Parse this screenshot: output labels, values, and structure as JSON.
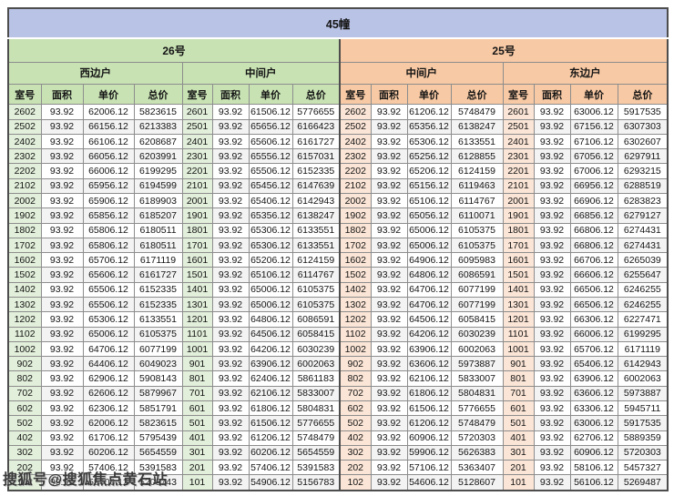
{
  "title": "45幢",
  "watermark_text": "搜狐号@搜狐焦点黄石站",
  "colors": {
    "title_bg": "#b9c3e6",
    "building_26_header": "#c8e2b4",
    "building_26_room_tint": "#e2efda",
    "building_25_header": "#f7c9a4",
    "building_25_room_tint": "#fbe5d6"
  },
  "buildings": [
    {
      "name": "26号",
      "units": [
        "西边户",
        "中间户"
      ]
    },
    {
      "name": "25号",
      "units": [
        "中间户",
        "东边户"
      ]
    }
  ],
  "column_headers": [
    "室号",
    "面积",
    "单价",
    "总价"
  ],
  "rows": [
    [
      "2602",
      "93.92",
      "62006.12",
      "5823615",
      "2601",
      "93.92",
      "61506.12",
      "5776655",
      "2602",
      "93.92",
      "61206.12",
      "5748479",
      "2601",
      "93.92",
      "63006.12",
      "5917535"
    ],
    [
      "2502",
      "93.92",
      "66156.12",
      "6213383",
      "2501",
      "93.92",
      "65656.12",
      "6166423",
      "2502",
      "93.92",
      "65356.12",
      "6138247",
      "2501",
      "93.92",
      "67156.12",
      "6307303"
    ],
    [
      "2402",
      "93.92",
      "66106.12",
      "6208687",
      "2401",
      "93.92",
      "65606.12",
      "6161727",
      "2402",
      "93.92",
      "65306.12",
      "6133551",
      "2401",
      "93.92",
      "67106.12",
      "6302607"
    ],
    [
      "2302",
      "93.92",
      "66056.12",
      "6203991",
      "2301",
      "93.92",
      "65556.12",
      "6157031",
      "2302",
      "93.92",
      "65256.12",
      "6128855",
      "2301",
      "93.92",
      "67056.12",
      "6297911"
    ],
    [
      "2202",
      "93.92",
      "66006.12",
      "6199295",
      "2201",
      "93.92",
      "65506.12",
      "6152335",
      "2202",
      "93.92",
      "65206.12",
      "6124159",
      "2201",
      "93.92",
      "67006.12",
      "6293215"
    ],
    [
      "2102",
      "93.92",
      "65956.12",
      "6194599",
      "2101",
      "93.92",
      "65456.12",
      "6147639",
      "2102",
      "93.92",
      "65156.12",
      "6119463",
      "2101",
      "93.92",
      "66956.12",
      "6288519"
    ],
    [
      "2002",
      "93.92",
      "65906.12",
      "6189903",
      "2001",
      "93.92",
      "65406.12",
      "6142943",
      "2002",
      "93.92",
      "65106.12",
      "6114767",
      "2001",
      "93.92",
      "66906.12",
      "6283823"
    ],
    [
      "1902",
      "93.92",
      "65856.12",
      "6185207",
      "1901",
      "93.92",
      "65356.12",
      "6138247",
      "1902",
      "93.92",
      "65056.12",
      "6110071",
      "1901",
      "93.92",
      "66856.12",
      "6279127"
    ],
    [
      "1802",
      "93.92",
      "65806.12",
      "6180511",
      "1801",
      "93.92",
      "65306.12",
      "6133551",
      "1802",
      "93.92",
      "65006.12",
      "6105375",
      "1801",
      "93.92",
      "66806.12",
      "6274431"
    ],
    [
      "1702",
      "93.92",
      "65806.12",
      "6180511",
      "1701",
      "93.92",
      "65306.12",
      "6133551",
      "1702",
      "93.92",
      "65006.12",
      "6105375",
      "1701",
      "93.92",
      "66806.12",
      "6274431"
    ],
    [
      "1602",
      "93.92",
      "65706.12",
      "6171119",
      "1601",
      "93.92",
      "65206.12",
      "6124159",
      "1602",
      "93.92",
      "64906.12",
      "6095983",
      "1601",
      "93.92",
      "66706.12",
      "6265039"
    ],
    [
      "1502",
      "93.92",
      "65606.12",
      "6161727",
      "1501",
      "93.92",
      "65106.12",
      "6114767",
      "1502",
      "93.92",
      "64806.12",
      "6086591",
      "1501",
      "93.92",
      "66606.12",
      "6255647"
    ],
    [
      "1402",
      "93.92",
      "65506.12",
      "6152335",
      "1401",
      "93.92",
      "65006.12",
      "6105375",
      "1402",
      "93.92",
      "64706.12",
      "6077199",
      "1401",
      "93.92",
      "66506.12",
      "6246255"
    ],
    [
      "1302",
      "93.92",
      "65506.12",
      "6152335",
      "1301",
      "93.92",
      "65006.12",
      "6105375",
      "1302",
      "93.92",
      "64706.12",
      "6077199",
      "1301",
      "93.92",
      "66506.12",
      "6246255"
    ],
    [
      "1202",
      "93.92",
      "65306.12",
      "6133551",
      "1201",
      "93.92",
      "64806.12",
      "6086591",
      "1202",
      "93.92",
      "64506.12",
      "6058415",
      "1201",
      "93.92",
      "66306.12",
      "6227471"
    ],
    [
      "1102",
      "93.92",
      "65006.12",
      "6105375",
      "1101",
      "93.92",
      "64506.12",
      "6058415",
      "1102",
      "93.92",
      "64206.12",
      "6030239",
      "1101",
      "93.92",
      "66006.12",
      "6199295"
    ],
    [
      "1002",
      "93.92",
      "64706.12",
      "6077199",
      "1001",
      "93.92",
      "64206.12",
      "6030239",
      "1002",
      "93.92",
      "63906.12",
      "6002063",
      "1001",
      "93.92",
      "65706.12",
      "6171119"
    ],
    [
      "902",
      "93.92",
      "64406.12",
      "6049023",
      "901",
      "93.92",
      "63906.12",
      "6002063",
      "902",
      "93.92",
      "63606.12",
      "5973887",
      "901",
      "93.92",
      "65406.12",
      "6142943"
    ],
    [
      "802",
      "93.92",
      "62906.12",
      "5908143",
      "801",
      "93.92",
      "62406.12",
      "5861183",
      "802",
      "93.92",
      "62106.12",
      "5833007",
      "801",
      "93.92",
      "63906.12",
      "6002063"
    ],
    [
      "702",
      "93.92",
      "62606.12",
      "5879967",
      "701",
      "93.92",
      "62106.12",
      "5833007",
      "702",
      "93.92",
      "61806.12",
      "5804831",
      "701",
      "93.92",
      "63606.12",
      "5973887"
    ],
    [
      "602",
      "93.92",
      "62306.12",
      "5851791",
      "601",
      "93.92",
      "61806.12",
      "5804831",
      "602",
      "93.92",
      "61506.12",
      "5776655",
      "601",
      "93.92",
      "63306.12",
      "5945711"
    ],
    [
      "502",
      "93.92",
      "62006.12",
      "5823615",
      "501",
      "93.92",
      "61506.12",
      "5776655",
      "502",
      "93.92",
      "61206.12",
      "5748479",
      "501",
      "93.92",
      "63006.12",
      "5917535"
    ],
    [
      "402",
      "93.92",
      "61706.12",
      "5795439",
      "401",
      "93.92",
      "61206.12",
      "5748479",
      "402",
      "93.92",
      "60906.12",
      "5720303",
      "401",
      "93.92",
      "62706.12",
      "5889359"
    ],
    [
      "302",
      "93.92",
      "60206.12",
      "5654559",
      "301",
      "93.92",
      "60206.12",
      "5654559",
      "302",
      "93.92",
      "59906.12",
      "5626383",
      "301",
      "93.92",
      "60906.12",
      "5720303"
    ],
    [
      "202",
      "93.92",
      "57406.12",
      "5391583",
      "201",
      "93.92",
      "57406.12",
      "5391583",
      "202",
      "93.92",
      "57106.12",
      "5363407",
      "201",
      "93.92",
      "58106.12",
      "5457327"
    ],
    [
      "102",
      "93.92",
      "55406.12",
      "5203743",
      "101",
      "93.92",
      "54906.12",
      "5156783",
      "102",
      "93.92",
      "54606.12",
      "5128607",
      "101",
      "93.92",
      "56106.12",
      "5269487"
    ]
  ]
}
